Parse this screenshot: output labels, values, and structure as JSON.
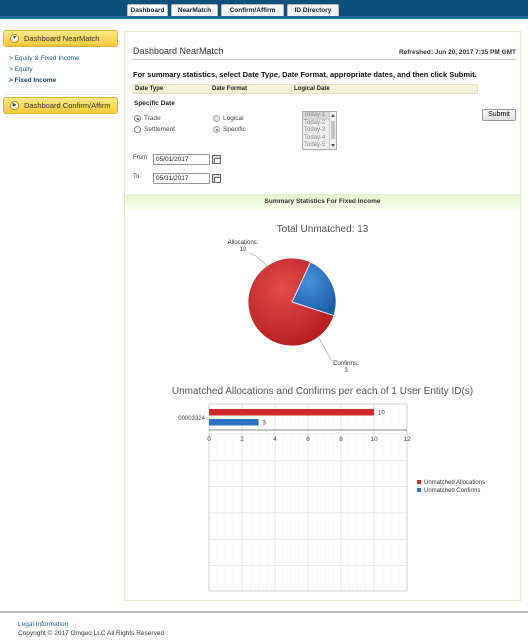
{
  "tabs": [
    {
      "label": "Dashboard",
      "active": true
    },
    {
      "label": "NearMatch",
      "active": false
    },
    {
      "label": "Confirm/Affirm",
      "active": false
    },
    {
      "label": "ID Directory",
      "active": false
    }
  ],
  "sidebar": {
    "section1": {
      "label": "Dashboard NearMatch",
      "icon": "chevron-down-icon"
    },
    "links": [
      {
        "label": "> Equity & Fixed Income",
        "current": false
      },
      {
        "label": "> Equity",
        "current": false
      },
      {
        "label": "> Fixed Income",
        "current": true
      }
    ],
    "section2": {
      "label": "Dashboard Confirm/Affirm",
      "icon": "chevron-right-icon"
    }
  },
  "panel": {
    "title": "Dashboard NearMatch",
    "refreshed": "Refreshed: Jun 20, 2017 7:35 PM GMT",
    "instructions": "For summary statistics, select Date Type, Date Format, appropriate dates, and then click Submit."
  },
  "form": {
    "col_date_type": "Date Type",
    "col_date_format": "Date Format",
    "col_logical_date": "Logical Date",
    "specific_date_label": "Specific Date",
    "date_type_options": [
      {
        "label": "Trade",
        "checked": true
      },
      {
        "label": "Settlement",
        "checked": false
      }
    ],
    "date_format_options": [
      {
        "label": "Logical",
        "checked": false
      },
      {
        "label": "Specific",
        "checked": true
      }
    ],
    "logical_dates": [
      "Today-1",
      "Today-2",
      "Today-3",
      "Today-4",
      "Today-5"
    ],
    "from_label": "From",
    "from_value": "05/01/2017",
    "to_label": "To",
    "to_value": "05/31/2017",
    "submit_label": "Submit"
  },
  "summary_header": "Summary Statistics For Fixed Income",
  "chart_data": [
    {
      "type": "pie",
      "title": "Total Unmatched: 13",
      "slices": [
        {
          "label": "Allocations",
          "value": 10,
          "color": "#cc2a2a"
        },
        {
          "label": "Confirms",
          "value": 3,
          "color": "#2a72c2"
        }
      ],
      "label_allocations": "Allocations:",
      "value_allocations": "10",
      "label_confirms": "Confirms:",
      "value_confirms": "3"
    },
    {
      "type": "bar",
      "orientation": "horizontal",
      "title": "Unmatched Allocations and Confirms per each of 1 User Entity ID(s)",
      "categories": [
        "00003324"
      ],
      "series": [
        {
          "name": "Unmatched Allocations",
          "values": [
            10
          ],
          "color": "#cc2a2a"
        },
        {
          "name": "Unmatched Confirms",
          "values": [
            3
          ],
          "color": "#2a72c2"
        }
      ],
      "xlim": [
        0,
        12
      ],
      "xticks": [
        0,
        2,
        4,
        6,
        8,
        10,
        12
      ],
      "grid": true,
      "legend": "right"
    }
  ],
  "footer": {
    "legal": "Legal Information",
    "copyright": "Copyright © 2017 Omgeo LLC All Rights Reserved"
  }
}
